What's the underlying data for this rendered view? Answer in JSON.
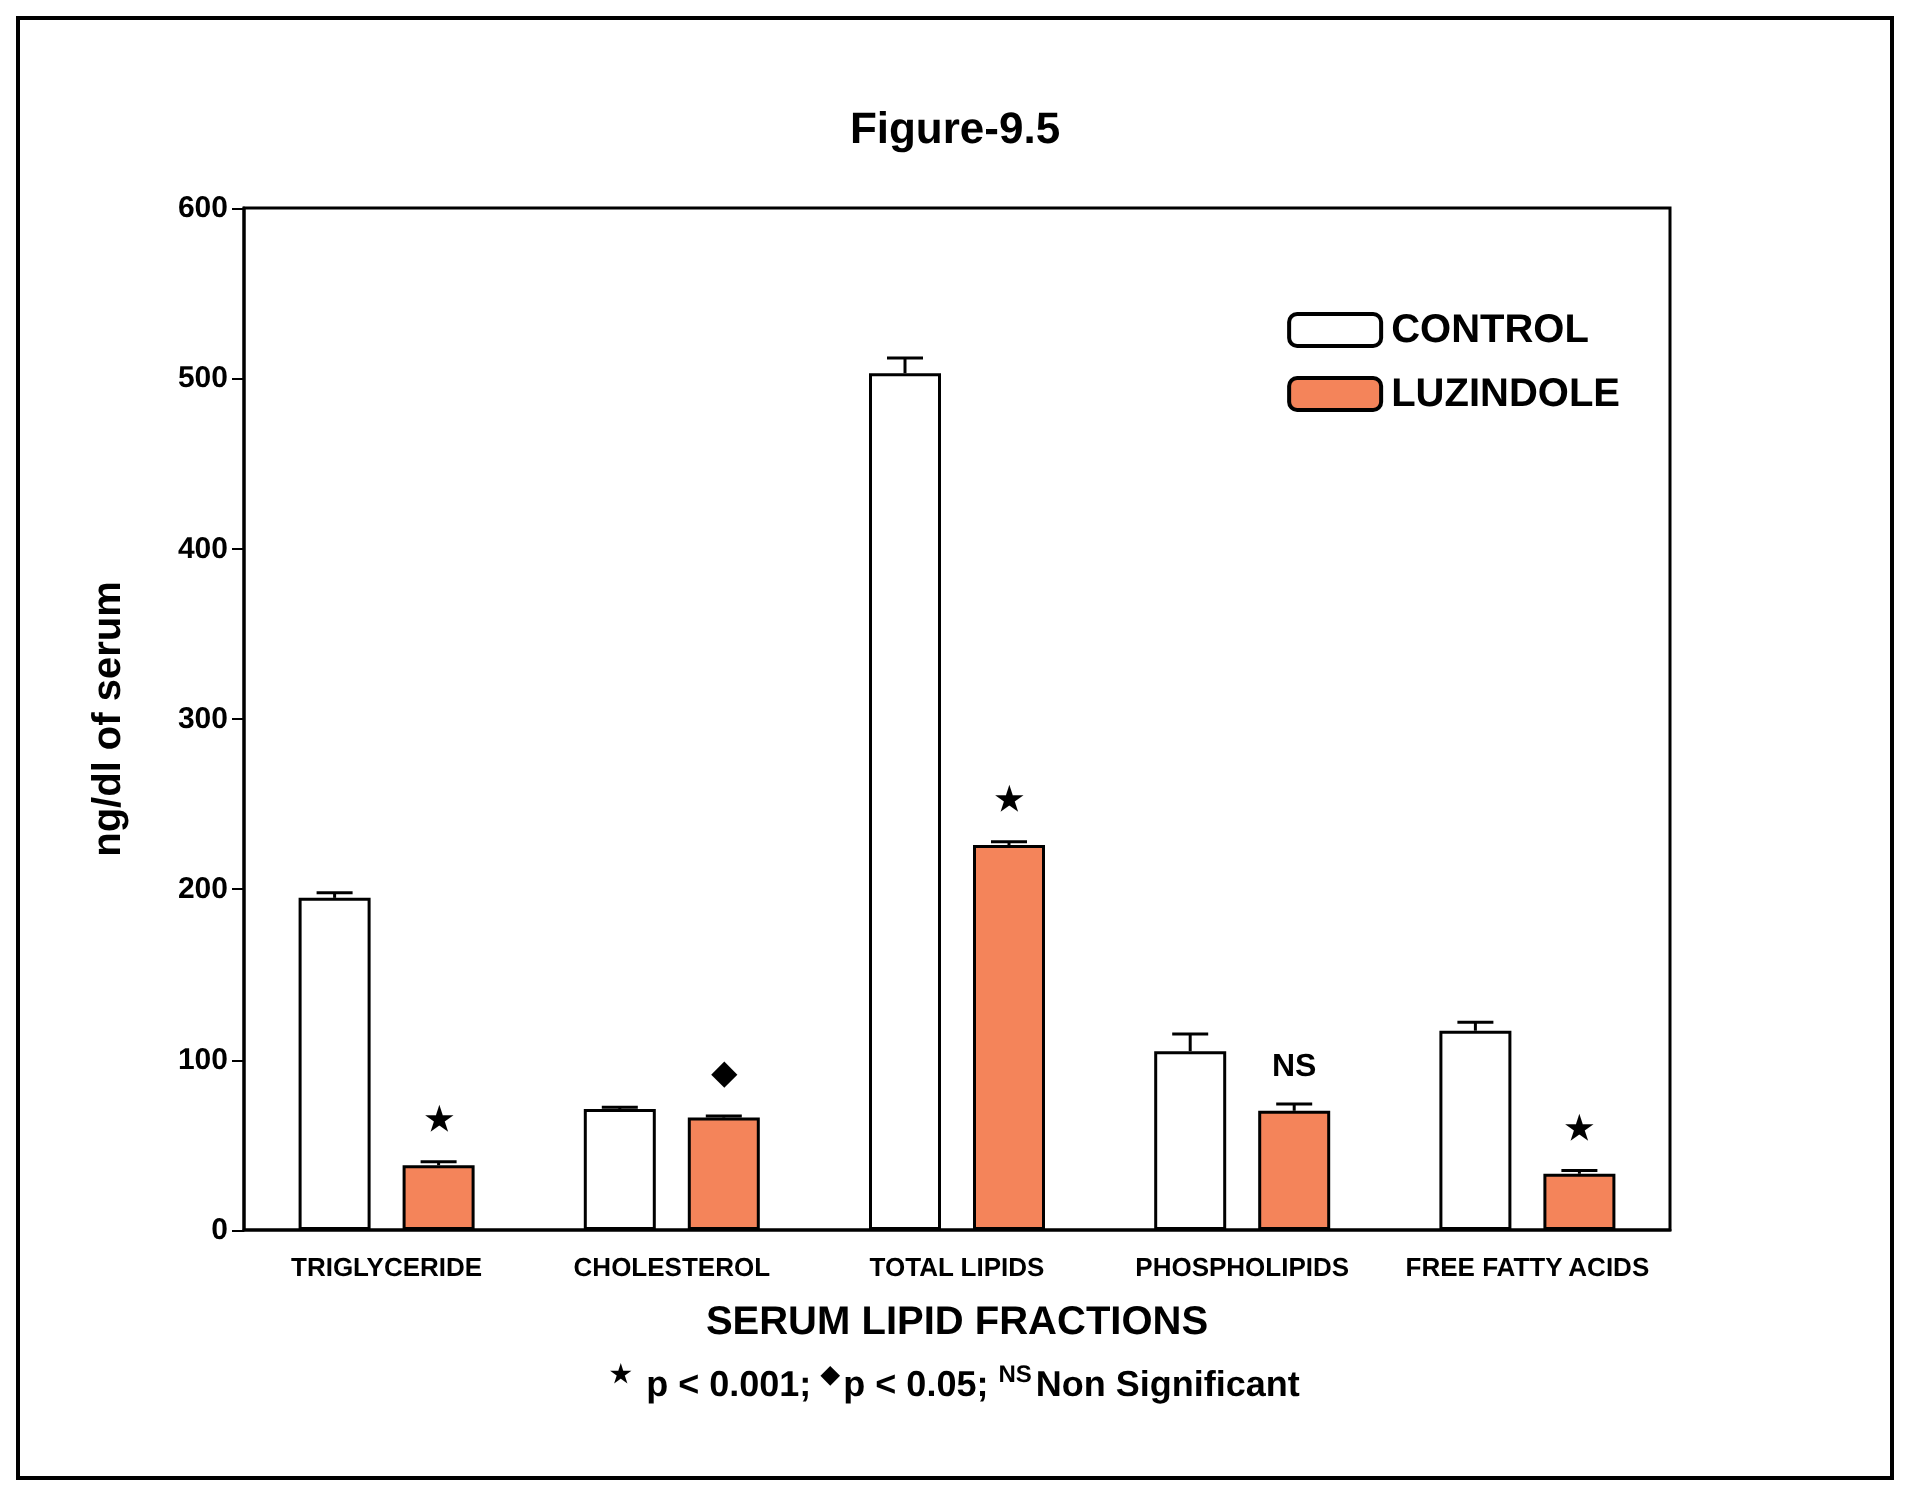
{
  "chart_data": {
    "type": "bar",
    "title": "Figure-9.5",
    "xlabel": "SERUM LIPID FRACTIONS",
    "ylabel": "ng/dl of serum",
    "categories": [
      "TRIGLYCERIDE",
      "CHOLESTEROL",
      "TOTAL LIPIDS",
      "PHOSPHOLIPIDS",
      "FREE FATTY ACIDS"
    ],
    "series": [
      {
        "name": "CONTROL",
        "color": "#ffffff",
        "values": [
          195,
          71,
          503,
          105,
          117
        ],
        "errors": [
          [
            195,
            198
          ],
          [
            71,
            72
          ],
          [
            503,
            512
          ],
          [
            105,
            115
          ],
          [
            117,
            122
          ]
        ]
      },
      {
        "name": "LUZINDOLE",
        "color": "#f4845a",
        "values": [
          38,
          66,
          226,
          70,
          33
        ],
        "value_labels": [
          "★",
          "◆",
          "★",
          "NS",
          "★"
        ],
        "errors": [
          [
            38,
            40
          ],
          [
            66,
            67
          ],
          [
            226,
            228
          ],
          [
            70,
            74
          ],
          [
            33,
            35
          ]
        ]
      }
    ],
    "ylim": [
      0,
      600
    ],
    "yticks": [
      0,
      100,
      200,
      300,
      400,
      500,
      600
    ],
    "grid": false,
    "legend": "top right",
    "annotations": [
      "$^{★}$ p < 0.001; $^{◆}$p < 0.05; $^{NS}$Non Significant"
    ]
  }
}
